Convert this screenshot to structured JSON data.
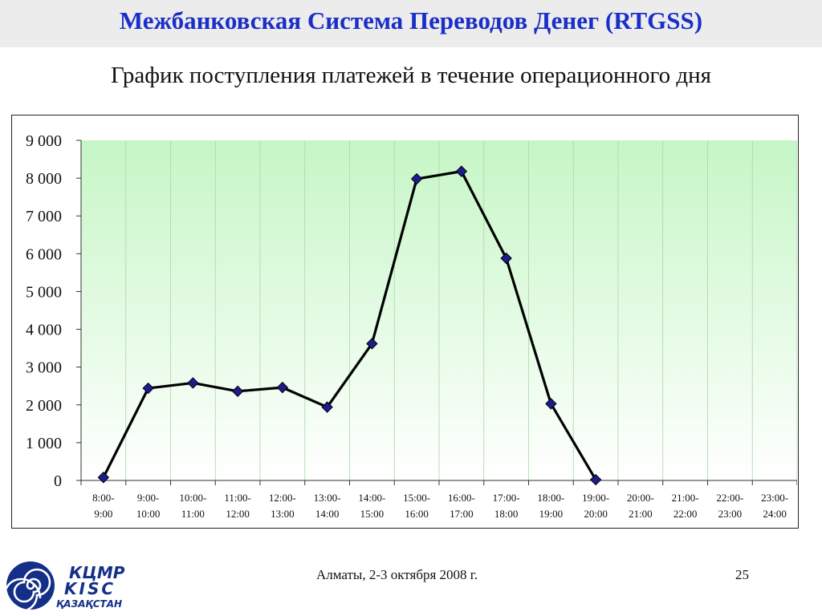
{
  "header": {
    "title": "Межбанковская Система Переводов Денег (RTGSS)"
  },
  "chart_data": {
    "type": "line",
    "title": "График поступления платежей в течение операционного дня",
    "xlabel": "",
    "ylabel": "",
    "ylim": [
      0,
      9000
    ],
    "yticks": [
      "0",
      "1 000",
      "2 000",
      "3 000",
      "4 000",
      "5 000",
      "6 000",
      "7 000",
      "8 000",
      "9 000"
    ],
    "grid": "vertical",
    "legend": "none",
    "categories": [
      [
        "8:00-",
        "9:00"
      ],
      [
        "9:00-",
        "10:00"
      ],
      [
        "10:00-",
        "11:00"
      ],
      [
        "11:00-",
        "12:00"
      ],
      [
        "12:00-",
        "13:00"
      ],
      [
        "13:00-",
        "14:00"
      ],
      [
        "14:00-",
        "15:00"
      ],
      [
        "15:00-",
        "16:00"
      ],
      [
        "16:00-",
        "17:00"
      ],
      [
        "17:00-",
        "18:00"
      ],
      [
        "18:00-",
        "19:00"
      ],
      [
        "19:00-",
        "20:00"
      ],
      [
        "20:00-",
        "21:00"
      ],
      [
        "21:00-",
        "22:00"
      ],
      [
        "22:00-",
        "23:00"
      ],
      [
        "23:00-",
        "24:00"
      ]
    ],
    "series": [
      {
        "values": [
          80,
          2440,
          2580,
          2360,
          2460,
          1940,
          3620,
          7980,
          8180,
          5880,
          2030,
          20,
          null,
          null,
          null,
          null
        ],
        "line_color": "#000000",
        "marker_color": "#1c1c8c"
      }
    ],
    "plot_background": [
      "#ffffff",
      "#c6f6c6"
    ]
  },
  "footer": {
    "place_date": "Алматы, 2-3 октября 2008 г.",
    "page": "25"
  },
  "logo": {
    "line1": "КЦМР",
    "line2": "KISC",
    "line3": "ҚАЗАҚСТАН"
  }
}
